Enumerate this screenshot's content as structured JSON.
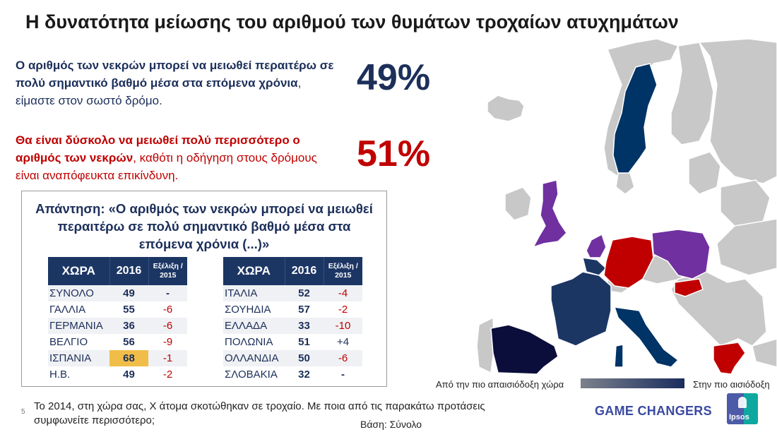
{
  "title": "Η δυνατότητα μείωσης του αριθμού των θυμάτων τροχαίων ατυχημάτων",
  "statements": {
    "positive": {
      "bold": "Ο αριθμός των νεκρών μπορεί να μειωθεί περαιτέρω σε πολύ σημαντικό βαθμό μέσα στα επόμενα χρόνια",
      "rest": ", είμαστε στον σωστό δρόμο.",
      "percent": "49%",
      "color": "#1c2f5a"
    },
    "negative": {
      "bold": "Θα είναι δύσκολο να μειωθεί πολύ περισσότερο ο αριθμός των νεκρών",
      "rest": ", καθότι η οδήγηση στους δρόμους είναι αναπόφευκτα επικίνδυνη.",
      "percent": "51%",
      "color": "#c00000"
    }
  },
  "answer_box": {
    "title": "Απάντηση: «Ο αριθμός των νεκρών μπορεί να μειωθεί περαιτέρω σε πολύ σημαντικό βαθμό μέσα στα επόμενα χρόνια (...)»",
    "headers": {
      "country": "ΧΩΡΑ",
      "year": "2016",
      "change": "Εξέλιξη / 2015"
    },
    "left_table": [
      {
        "country": "ΣΥΝΟΛΟ",
        "value": "49",
        "change": "-"
      },
      {
        "country": "ΓΑΛΛΙΑ",
        "value": "55",
        "change": "-6"
      },
      {
        "country": "ΓΕΡΜΑΝΙΑ",
        "value": "36",
        "change": "-6"
      },
      {
        "country": "ΒΕΛΓΙΟ",
        "value": "56",
        "change": "-9"
      },
      {
        "country": "ΙΣΠΑΝΙΑ",
        "value": "68",
        "change": "-1",
        "highlight": true
      },
      {
        "country": "Η.Β.",
        "value": "49",
        "change": "-2"
      }
    ],
    "right_table": [
      {
        "country": "ΙΤΑΛΙΑ",
        "value": "52",
        "change": "-4"
      },
      {
        "country": "ΣΟΥΗΔΙΑ",
        "value": "57",
        "change": "-2"
      },
      {
        "country": "ΕΛΛΑΔΑ",
        "value": "33",
        "change": "-10"
      },
      {
        "country": "ΠΟΛΩΝΙΑ",
        "value": "51",
        "change": "+4"
      },
      {
        "country": "ΟΛΛΑΝΔΙΑ",
        "value": "50",
        "change": "-6"
      },
      {
        "country": "ΣΛΟΒΑΚΙΑ",
        "value": "32",
        "change": "-"
      }
    ],
    "highlight_color": "#f0be48"
  },
  "map": {
    "legend_left": "Από την πιο απαισιόδοξη χώρα",
    "legend_right": "Στην πιο αισιόδοξη",
    "colors": {
      "most_optimistic": "#0b0d3a",
      "optimistic": "#1c3664",
      "mid_optimistic": "#003366",
      "mid": "#7030a0",
      "pessimistic": "#c00000",
      "not_surveyed": "#c8c8c8"
    },
    "countries": [
      {
        "name": "Spain",
        "color_key": "most_optimistic"
      },
      {
        "name": "France",
        "color_key": "optimistic"
      },
      {
        "name": "Belgium",
        "color_key": "optimistic"
      },
      {
        "name": "Sweden",
        "color_key": "mid_optimistic"
      },
      {
        "name": "Italy",
        "color_key": "mid_optimistic"
      },
      {
        "name": "United Kingdom",
        "color_key": "mid"
      },
      {
        "name": "Netherlands",
        "color_key": "mid"
      },
      {
        "name": "Poland",
        "color_key": "mid"
      },
      {
        "name": "Germany",
        "color_key": "pessimistic"
      },
      {
        "name": "Slovakia",
        "color_key": "pessimistic"
      },
      {
        "name": "Greece",
        "color_key": "pessimistic"
      }
    ]
  },
  "footer": {
    "page_number": "5",
    "question": "Το 2014, στη χώρα σας, Χ άτομα σκοτώθηκαν σε τροχαίο. Με ποια από τις παρακάτω προτάσεις συμφωνείτε περισσότερο;",
    "base": "Βάση: Σύνολο",
    "brand": "GAME CHANGERS",
    "logo": "Ipsos"
  }
}
